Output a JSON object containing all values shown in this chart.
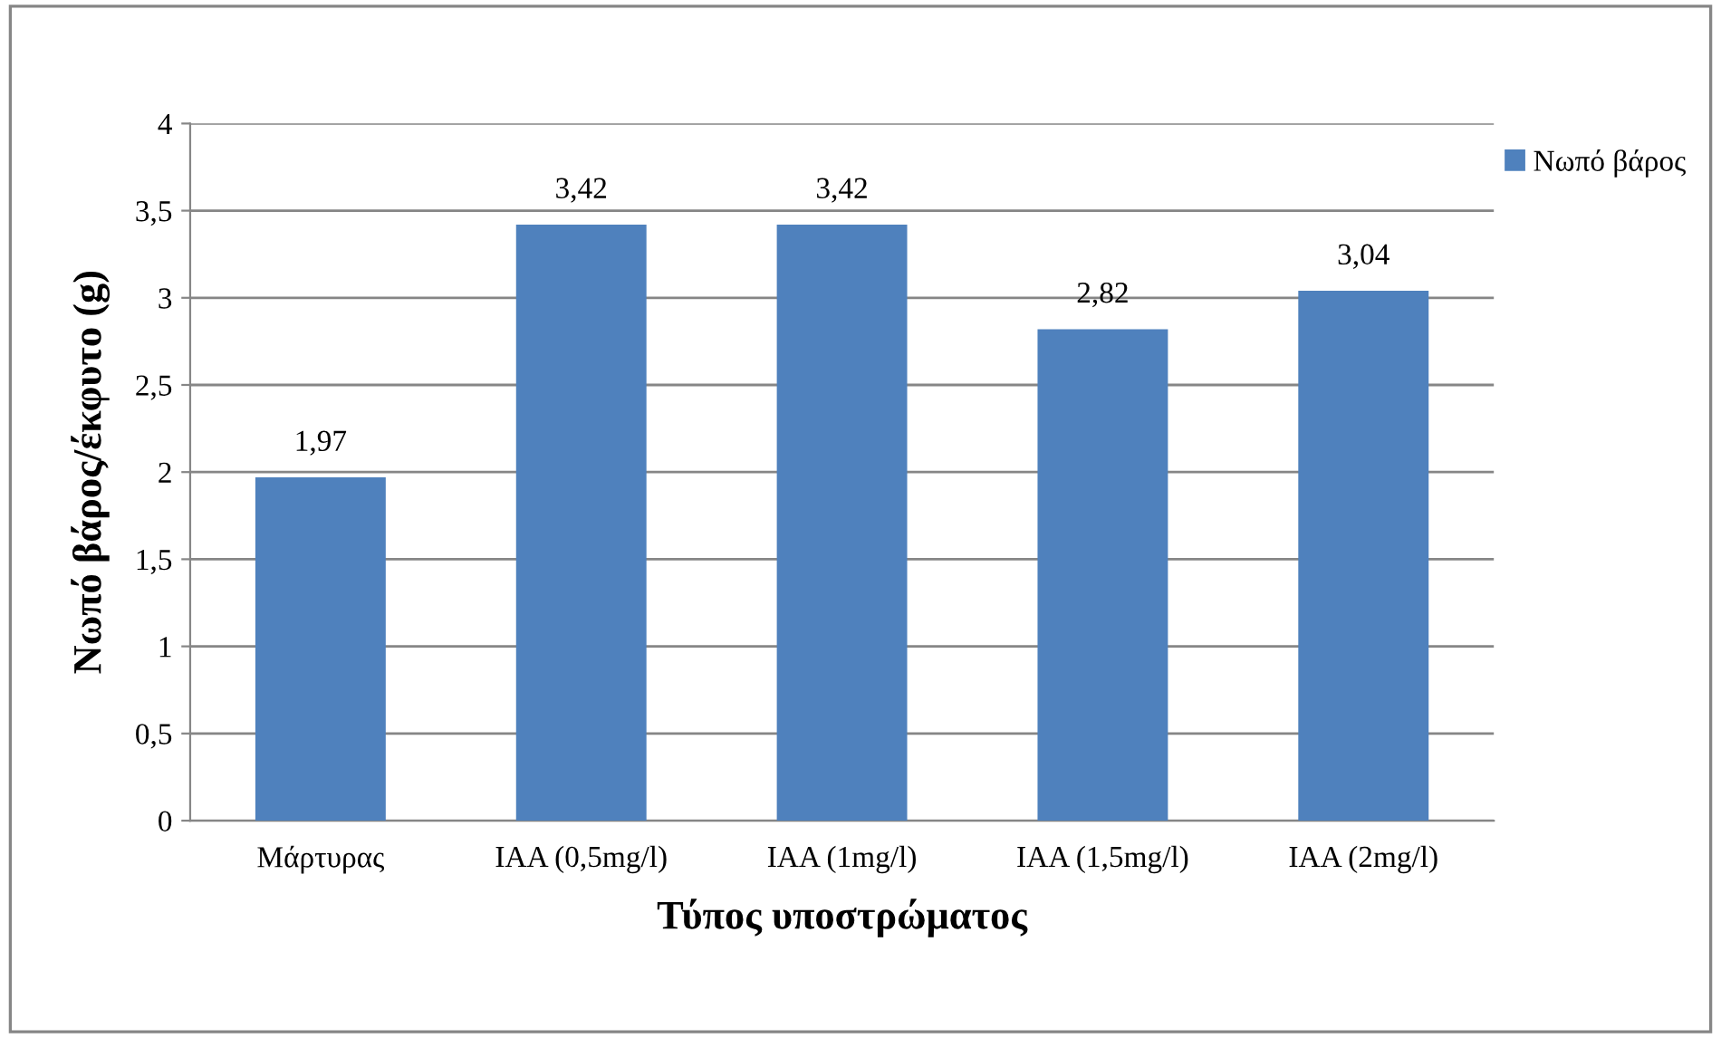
{
  "chart_data": {
    "type": "bar",
    "xlabel": "Τύπος υποστρώματος",
    "ylabel": "Νωπό βάρος/έκφυτο (g)",
    "categories": [
      "Μάρτυρας",
      "IAA (0,5mg/l)",
      "IAA (1mg/l)",
      "IAA (1,5mg/l)",
      "IAA (2mg/l)"
    ],
    "series": [
      {
        "name": "Νωπό βάρος",
        "color": "#4f81bd",
        "values": [
          1.97,
          3.42,
          3.42,
          2.82,
          3.04
        ],
        "value_labels": [
          "1,97",
          "3,42",
          "3,42",
          "2,82",
          "3,04"
        ]
      }
    ],
    "ylim": [
      0,
      4
    ],
    "yticks": [
      0,
      {
        "value": 0.5,
        "label": "0,5"
      },
      1,
      {
        "value": 1.5,
        "label": "1,5"
      },
      2,
      {
        "value": 2.5,
        "label": "2,5"
      },
      3,
      {
        "value": 3.5,
        "label": "3,5"
      },
      4
    ],
    "grid": "y",
    "legend": "right"
  }
}
